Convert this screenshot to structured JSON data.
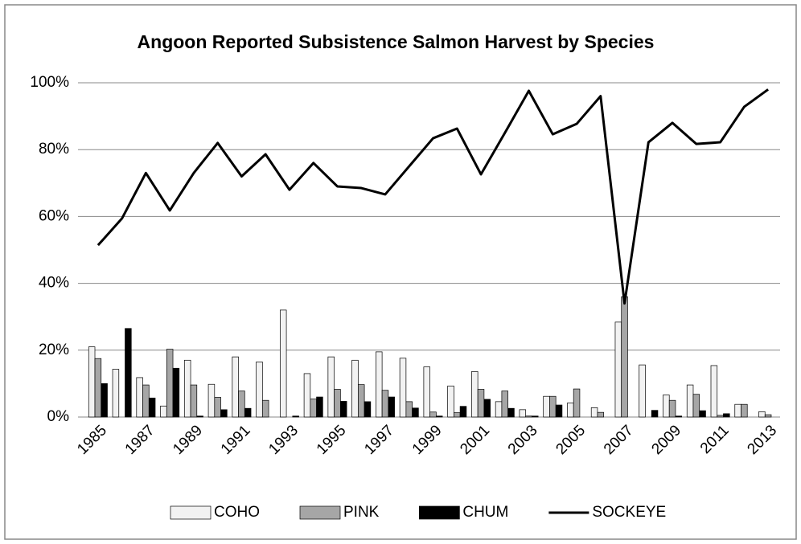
{
  "chart_data": {
    "type": "bar_line",
    "title": "Angoon Reported Subsistence Salmon Harvest by Species",
    "categories": [
      "1985",
      null,
      "1987",
      null,
      "1989",
      null,
      "1991",
      null,
      "1993",
      null,
      "1995",
      null,
      "1997",
      null,
      "1999",
      null,
      "2001",
      null,
      "2003",
      null,
      "2005",
      null,
      "2007",
      null,
      "2009",
      null,
      "2011",
      null,
      "2013"
    ],
    "series": [
      {
        "name": "COHO",
        "type": "bar",
        "color": "#f2f2f2",
        "values": [
          21,
          14.3,
          11.8,
          3.3,
          17,
          9.8,
          18,
          16.5,
          32,
          13,
          18,
          17,
          19.5,
          17.6,
          15,
          9.3,
          13.6,
          4.6,
          2.2,
          6.2,
          4.2,
          2.8,
          28.4,
          15.6,
          6.6,
          9.6,
          15.4,
          3.8,
          1.6
        ]
      },
      {
        "name": "PINK",
        "type": "bar",
        "color": "#a6a6a6",
        "values": [
          17.5,
          0,
          9.6,
          20.3,
          9.6,
          5.9,
          7.8,
          5,
          0,
          5.4,
          8.3,
          9.7,
          8,
          4.6,
          1.5,
          1.3,
          8.3,
          7.8,
          0.3,
          6.2,
          8.4,
          1.4,
          36,
          0,
          5,
          6.8,
          0.5,
          3.8,
          0.7
        ]
      },
      {
        "name": "CHUM",
        "type": "bar",
        "color": "#000000",
        "values": [
          10,
          26.5,
          5.7,
          14.6,
          0.3,
          2.2,
          2.6,
          0,
          0.3,
          6,
          4.7,
          4.6,
          6,
          2.7,
          0.3,
          3.2,
          5.3,
          2.6,
          0.3,
          3.6,
          0,
          0,
          0,
          2,
          0.3,
          1.9,
          1,
          0,
          0
        ]
      },
      {
        "name": "SOCKEYE",
        "type": "line",
        "color": "#000000",
        "values": [
          51.4,
          59.4,
          73,
          61.8,
          73,
          82,
          72,
          78.6,
          68,
          76,
          69,
          68.5,
          66.6,
          75,
          83.4,
          86.3,
          72.6,
          85,
          97.6,
          84.6,
          87.7,
          96,
          34,
          82.2,
          88,
          81.7,
          82.2,
          92.8,
          98
        ]
      }
    ],
    "ylim": [
      0,
      100
    ],
    "yticks": [
      {
        "value": 0,
        "label": "0%"
      },
      {
        "value": 20,
        "label": "20%"
      },
      {
        "value": 40,
        "label": "40%"
      },
      {
        "value": 60,
        "label": "60%"
      },
      {
        "value": 80,
        "label": "80%"
      },
      {
        "value": 100,
        "label": "100%"
      }
    ],
    "grid": true,
    "legend": "bottom"
  }
}
